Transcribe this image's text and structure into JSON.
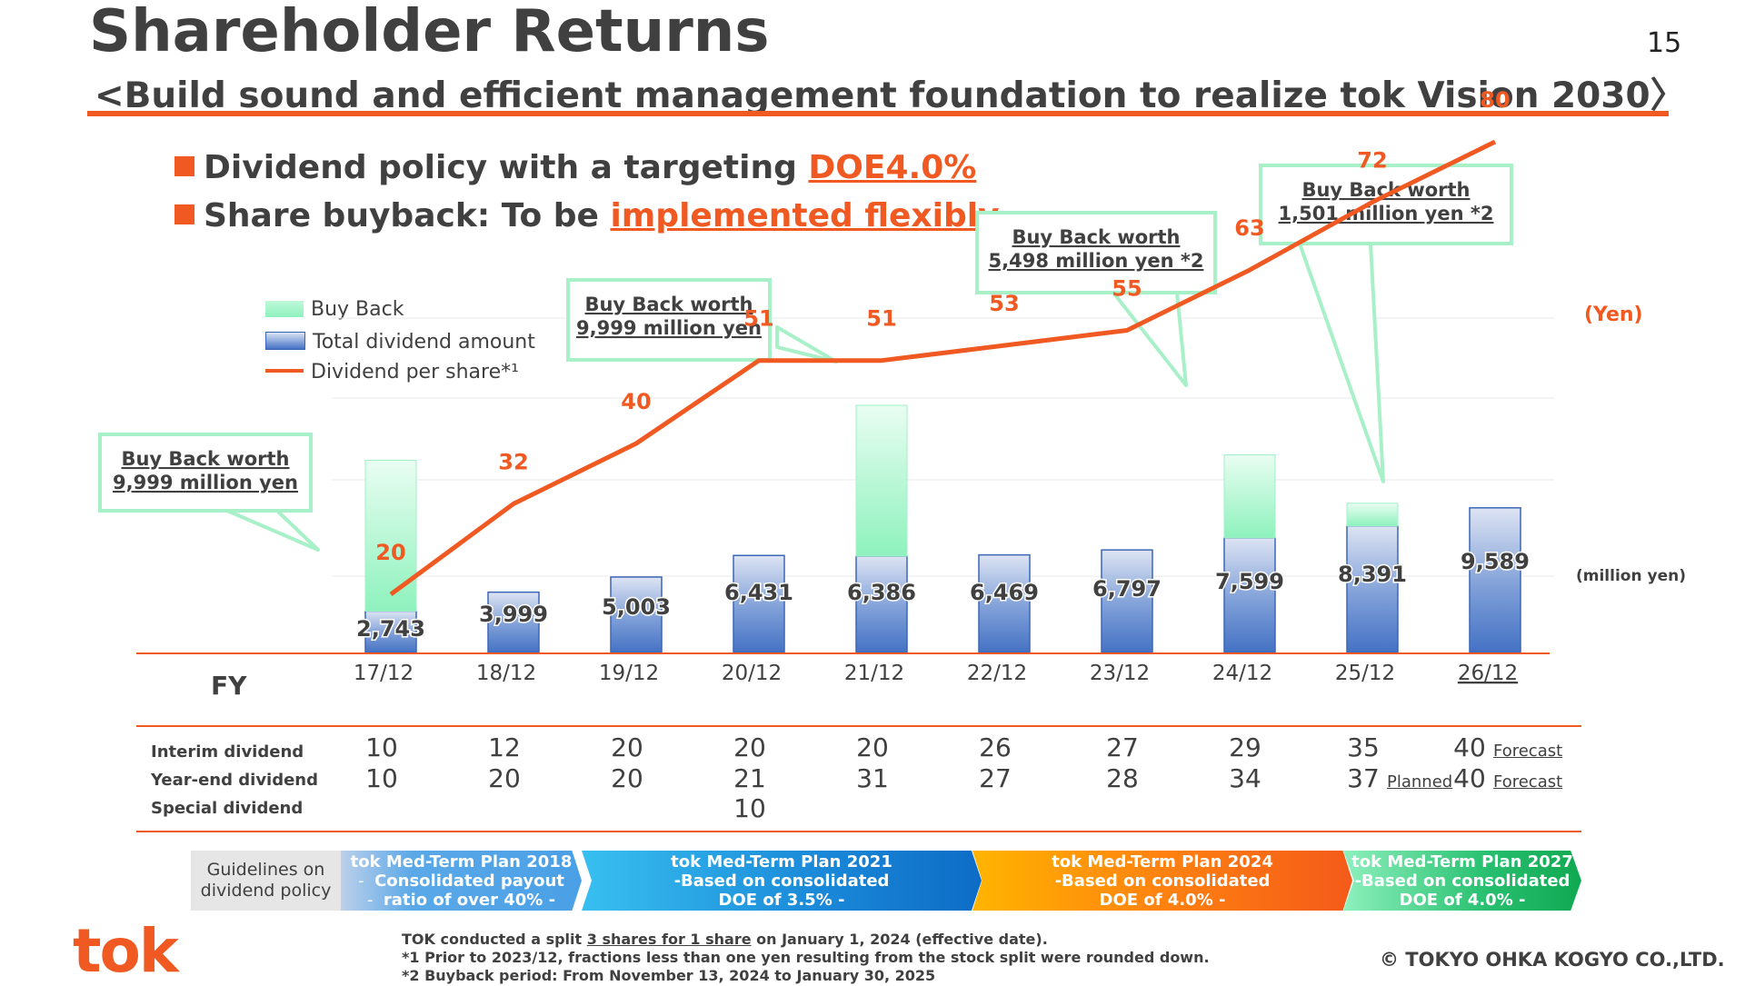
{
  "header": {
    "title": "Shareholder Returns",
    "subtitle": "<Build sound and efficient management foundation to realize tok Vision 2030〉",
    "page_number": "15"
  },
  "bullets": [
    {
      "text": "Dividend policy with a targeting ",
      "highlight": "DOE4.0%"
    },
    {
      "text": "Share buyback: To be ",
      "highlight": "implemented flexibly"
    }
  ],
  "legend": {
    "buyback": "Buy Back",
    "total_dividend": "Total dividend amount",
    "dps": "Dividend per share*¹"
  },
  "units": {
    "yen": "(Yen)",
    "million_yen": "(million yen)"
  },
  "colors": {
    "accent": "#f05a22",
    "buyback": "#8ef2bd",
    "dividend": "#4472c4",
    "callout_border": "#a8f0c8"
  },
  "chart_data": {
    "type": "bar",
    "categories": [
      "17/12",
      "18/12",
      "19/12",
      "20/12",
      "21/12",
      "22/12",
      "23/12",
      "24/12",
      "25/12",
      "26/12"
    ],
    "forecast_label": "Forecast",
    "series": [
      {
        "name": "Total dividend amount",
        "values": [
          2743,
          3999,
          5003,
          6431,
          6386,
          6469,
          6797,
          7599,
          8391,
          9589
        ]
      },
      {
        "name": "Buy Back",
        "values": [
          9999,
          0,
          0,
          0,
          9999,
          0,
          0,
          5498,
          1501,
          0
        ]
      },
      {
        "name": "Dividend per share*¹",
        "type": "line",
        "values": [
          20,
          32,
          40,
          51,
          51,
          53,
          55,
          63,
          72,
          80
        ]
      }
    ],
    "dividend_labels": [
      "2,743",
      "3,999",
      "5,003",
      "6,431",
      "6,386",
      "6,469",
      "6,797",
      "7,599",
      "8,391",
      "9,589"
    ],
    "dps_labels": [
      "20",
      "32",
      "40",
      "51",
      "51",
      "53",
      "55",
      "63",
      "72",
      "80"
    ],
    "callouts": [
      {
        "line1": "Buy Back worth",
        "line2": "9,999 million yen",
        "category": "17/12"
      },
      {
        "line1": "Buy Back worth",
        "line2": "9,999 million yen",
        "category": "21/12"
      },
      {
        "line1": "Buy Back worth",
        "line2": "5,498 million yen *2",
        "category": "24/12"
      },
      {
        "line1": "Buy Back worth",
        "line2": "1,501 million yen *2",
        "category": "25/12"
      }
    ]
  },
  "table": {
    "fy_label": "FY",
    "rows": [
      {
        "label": "Interim dividend",
        "values": [
          "10",
          "12",
          "20",
          "20",
          "20",
          "26",
          "27",
          "29",
          "35",
          "40"
        ],
        "notes": {
          "9": "Forecast"
        }
      },
      {
        "label": "Year-end dividend",
        "values": [
          "10",
          "20",
          "20",
          "21",
          "31",
          "27",
          "28",
          "34",
          "37",
          "40"
        ],
        "notes": {
          "8": "Planned",
          "9": "Forecast"
        }
      },
      {
        "label": "Special dividend",
        "values": [
          "",
          "",
          "",
          "10",
          "",
          "",
          "",
          "",
          "",
          ""
        ],
        "notes": {}
      }
    ]
  },
  "plans": {
    "guidelines": "Guidelines on dividend policy",
    "items": [
      {
        "line1": "tok Med-Term Plan 2018",
        "line2": "Consolidated payout",
        "line3": "ratio of over 40% -",
        "bullets": true
      },
      {
        "line1": "tok Med-Term Plan 2021",
        "line2": "-Based on consolidated",
        "line3": "DOE of 3.5% -"
      },
      {
        "line1": "tok Med-Term Plan 2024",
        "line2": "-Based on consolidated",
        "line3": "DOE of 4.0% -"
      },
      {
        "line1": "tok Med-Term Plan 2027",
        "line2": "-Based on consolidated",
        "line3": "DOE of 4.0% -"
      }
    ]
  },
  "footer": {
    "logo": "tok",
    "note_prefix": "TOK conducted a split ",
    "note_underline": "3 shares for 1 share",
    "note_suffix": " on January 1, 2024 (effective date).",
    "note1": "*1   Prior to 2023/12, fractions less than one yen resulting from the stock split were rounded down.",
    "note2": "*2   Buyback period: From November 13, 2024 to January 30, 2025",
    "copyright": "© TOKYO OHKA KOGYO CO.,LTD."
  }
}
